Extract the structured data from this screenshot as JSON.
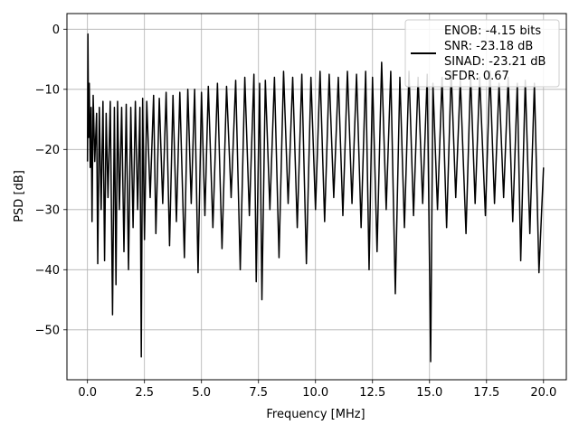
{
  "chart_data": {
    "type": "line",
    "title": "",
    "xlabel": "Frequency [MHz]",
    "ylabel": "PSD [dB]",
    "xlim": [
      -0.9,
      21.0
    ],
    "ylim": [
      -58.3,
      2.6
    ],
    "xticks": [
      0.0,
      2.5,
      5.0,
      7.5,
      10.0,
      12.5,
      15.0,
      17.5,
      20.0
    ],
    "xtick_labels": [
      "0.0",
      "2.5",
      "5.0",
      "7.5",
      "10.0",
      "12.5",
      "15.0",
      "17.5",
      "20.0"
    ],
    "yticks": [
      0,
      -10,
      -20,
      -30,
      -40,
      -50
    ],
    "ytick_labels": [
      "0",
      "−10",
      "−20",
      "−30",
      "−40",
      "−50"
    ],
    "grid": true,
    "legend_position": "top-right",
    "series": [
      {
        "color": "#000000",
        "points": [
          [
            0.0,
            -22.0
          ],
          [
            0.02,
            -0.8
          ],
          [
            0.05,
            -18.0
          ],
          [
            0.08,
            -9.0
          ],
          [
            0.12,
            -23.0
          ],
          [
            0.16,
            -13.0
          ],
          [
            0.2,
            -32.0
          ],
          [
            0.25,
            -11.0
          ],
          [
            0.32,
            -22.0
          ],
          [
            0.4,
            -14.0
          ],
          [
            0.45,
            -39.0
          ],
          [
            0.52,
            -13.0
          ],
          [
            0.6,
            -30.0
          ],
          [
            0.68,
            -12.0
          ],
          [
            0.75,
            -38.5
          ],
          [
            0.82,
            -14.0
          ],
          [
            0.9,
            -28.0
          ],
          [
            1.0,
            -12.0
          ],
          [
            1.1,
            -47.5
          ],
          [
            1.18,
            -13.0
          ],
          [
            1.25,
            -42.5
          ],
          [
            1.32,
            -12.0
          ],
          [
            1.4,
            -30.0
          ],
          [
            1.5,
            -13.0
          ],
          [
            1.6,
            -37.0
          ],
          [
            1.7,
            -12.5
          ],
          [
            1.8,
            -40.0
          ],
          [
            1.9,
            -13.0
          ],
          [
            2.0,
            -33.0
          ],
          [
            2.1,
            -12.0
          ],
          [
            2.2,
            -30.0
          ],
          [
            2.3,
            -13.0
          ],
          [
            2.36,
            -54.5
          ],
          [
            2.42,
            -11.5
          ],
          [
            2.5,
            -35.0
          ],
          [
            2.6,
            -12.0
          ],
          [
            2.75,
            -28.0
          ],
          [
            2.9,
            -11.0
          ],
          [
            3.0,
            -34.0
          ],
          [
            3.15,
            -11.5
          ],
          [
            3.3,
            -29.0
          ],
          [
            3.45,
            -10.5
          ],
          [
            3.6,
            -36.0
          ],
          [
            3.75,
            -11.0
          ],
          [
            3.9,
            -32.0
          ],
          [
            4.05,
            -10.5
          ],
          [
            4.25,
            -38.0
          ],
          [
            4.4,
            -10.0
          ],
          [
            4.55,
            -29.0
          ],
          [
            4.7,
            -10.0
          ],
          [
            4.85,
            -40.5
          ],
          [
            5.0,
            -10.5
          ],
          [
            5.15,
            -31.0
          ],
          [
            5.3,
            -9.5
          ],
          [
            5.5,
            -33.0
          ],
          [
            5.7,
            -9.0
          ],
          [
            5.9,
            -36.5
          ],
          [
            6.1,
            -9.5
          ],
          [
            6.3,
            -28.0
          ],
          [
            6.5,
            -8.5
          ],
          [
            6.7,
            -40.0
          ],
          [
            6.9,
            -8.0
          ],
          [
            7.1,
            -31.0
          ],
          [
            7.3,
            -7.5
          ],
          [
            7.4,
            -42.0
          ],
          [
            7.55,
            -9.0
          ],
          [
            7.65,
            -45.0
          ],
          [
            7.8,
            -8.5
          ],
          [
            8.0,
            -30.0
          ],
          [
            8.2,
            -8.0
          ],
          [
            8.4,
            -38.0
          ],
          [
            8.6,
            -7.0
          ],
          [
            8.8,
            -29.0
          ],
          [
            9.0,
            -8.0
          ],
          [
            9.2,
            -33.0
          ],
          [
            9.4,
            -7.5
          ],
          [
            9.6,
            -39.0
          ],
          [
            9.8,
            -8.0
          ],
          [
            10.0,
            -30.0
          ],
          [
            10.2,
            -7.0
          ],
          [
            10.4,
            -32.0
          ],
          [
            10.6,
            -7.5
          ],
          [
            10.8,
            -28.0
          ],
          [
            11.0,
            -8.0
          ],
          [
            11.2,
            -31.0
          ],
          [
            11.4,
            -7.0
          ],
          [
            11.6,
            -29.0
          ],
          [
            11.8,
            -7.5
          ],
          [
            12.0,
            -33.0
          ],
          [
            12.2,
            -7.0
          ],
          [
            12.35,
            -40.0
          ],
          [
            12.5,
            -8.0
          ],
          [
            12.7,
            -37.0
          ],
          [
            12.9,
            -5.5
          ],
          [
            13.1,
            -30.0
          ],
          [
            13.3,
            -7.0
          ],
          [
            13.5,
            -44.0
          ],
          [
            13.7,
            -8.0
          ],
          [
            13.9,
            -33.0
          ],
          [
            14.1,
            -7.0
          ],
          [
            14.3,
            -31.0
          ],
          [
            14.5,
            -8.0
          ],
          [
            14.7,
            -29.0
          ],
          [
            14.9,
            -7.5
          ],
          [
            15.05,
            -55.3
          ],
          [
            15.15,
            -9.0
          ],
          [
            15.35,
            -30.0
          ],
          [
            15.55,
            -8.0
          ],
          [
            15.75,
            -33.0
          ],
          [
            15.95,
            -7.0
          ],
          [
            16.15,
            -28.0
          ],
          [
            16.35,
            -8.5
          ],
          [
            16.6,
            -34.0
          ],
          [
            16.8,
            -7.5
          ],
          [
            17.0,
            -29.0
          ],
          [
            17.2,
            -8.0
          ],
          [
            17.45,
            -31.0
          ],
          [
            17.65,
            -7.0
          ],
          [
            17.85,
            -29.0
          ],
          [
            18.05,
            -9.0
          ],
          [
            18.25,
            -28.0
          ],
          [
            18.45,
            -8.0
          ],
          [
            18.65,
            -32.0
          ],
          [
            18.85,
            -9.0
          ],
          [
            19.0,
            -38.5
          ],
          [
            19.2,
            -8.5
          ],
          [
            19.4,
            -34.0
          ],
          [
            19.6,
            -9.0
          ],
          [
            19.8,
            -40.5
          ],
          [
            20.0,
            -23.0
          ]
        ]
      }
    ],
    "legend_lines": [
      "ENOB: -4.15 bits",
      "SNR: -23.18 dB",
      "SINAD: -23.21 dB",
      "SFDR: 0.67"
    ]
  }
}
